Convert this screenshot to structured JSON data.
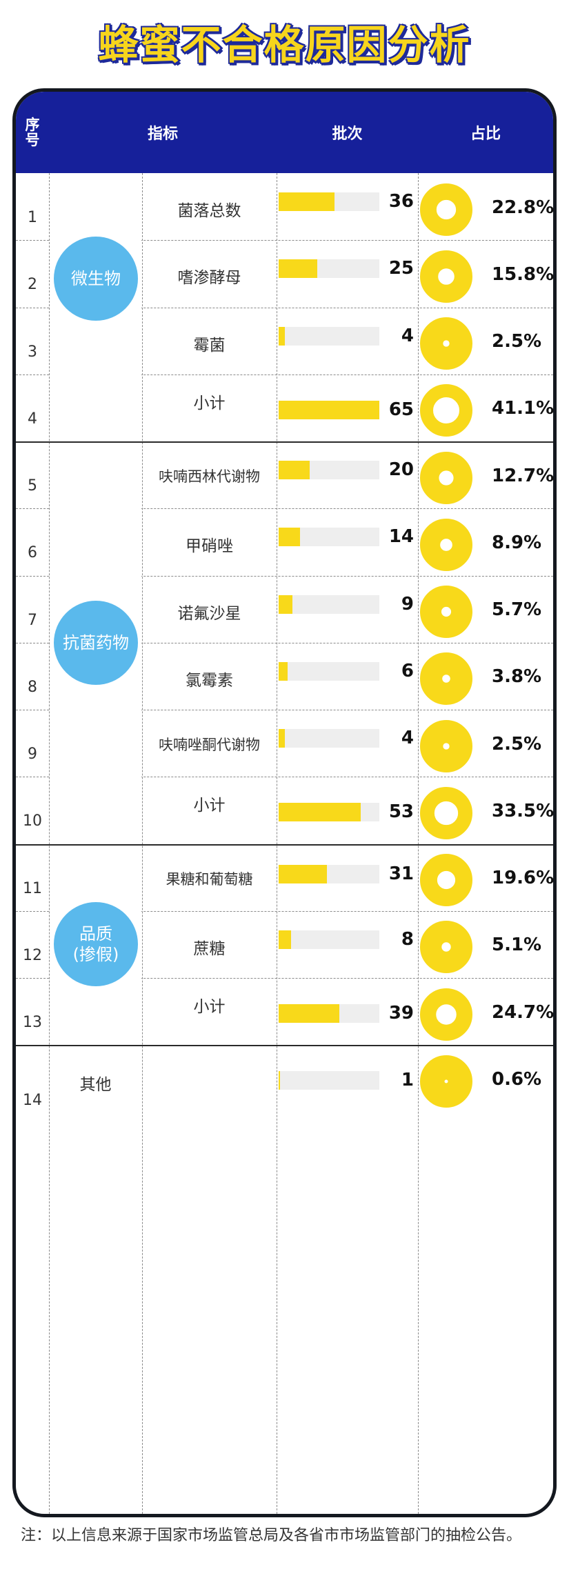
{
  "title": "蜂蜜不合格原因分析",
  "header": {
    "seq": [
      "序",
      "号"
    ],
    "indicator": "指标",
    "batches": "批次",
    "ratio": "占比"
  },
  "colors": {
    "header_bg": "#16209a",
    "accent_yellow": "#f8d91a",
    "category_blue": "#5ab9ec",
    "title_yellow": "#f7d51c"
  },
  "categories": [
    {
      "label": [
        "微生物"
      ],
      "rows": [
        0,
        3
      ]
    },
    {
      "label": [
        "抗菌药物"
      ],
      "rows": [
        4,
        9
      ]
    },
    {
      "label": [
        "品质",
        "(掺假)"
      ],
      "rows": [
        10,
        12
      ]
    }
  ],
  "footnote": "注：以上信息来源于国家市场监管总局及各省市市场监管部门的抽检公告。",
  "chart_data": {
    "type": "table",
    "title": "蜂蜜不合格原因分析",
    "columns": [
      "序号",
      "指标",
      "批次",
      "占比"
    ],
    "rows": [
      {
        "seq": "1",
        "category": "微生物",
        "indicator": "菌落总数",
        "batches": 36,
        "ratio": "22.8%"
      },
      {
        "seq": "2",
        "category": "微生物",
        "indicator": "嗜渗酵母",
        "batches": 25,
        "ratio": "15.8%"
      },
      {
        "seq": "3",
        "category": "微生物",
        "indicator": "霉菌",
        "batches": 4,
        "ratio": "2.5%"
      },
      {
        "seq": "4",
        "category": "微生物",
        "indicator": "小计",
        "batches": 65,
        "ratio": "41.1%"
      },
      {
        "seq": "5",
        "category": "抗菌药物",
        "indicator": "呋喃西林代谢物",
        "batches": 20,
        "ratio": "12.7%"
      },
      {
        "seq": "6",
        "category": "抗菌药物",
        "indicator": "甲硝唑",
        "batches": 14,
        "ratio": "8.9%"
      },
      {
        "seq": "7",
        "category": "抗菌药物",
        "indicator": "诺氟沙星",
        "batches": 9,
        "ratio": "5.7%"
      },
      {
        "seq": "8",
        "category": "抗菌药物",
        "indicator": "氯霉素",
        "batches": 6,
        "ratio": "3.8%"
      },
      {
        "seq": "9",
        "category": "抗菌药物",
        "indicator": "呋喃唑酮代谢物",
        "batches": 4,
        "ratio": "2.5%"
      },
      {
        "seq": "10",
        "category": "抗菌药物",
        "indicator": "小计",
        "batches": 53,
        "ratio": "33.5%"
      },
      {
        "seq": "11",
        "category": "品质(掺假)",
        "indicator": "果糖和葡萄糖",
        "batches": 31,
        "ratio": "19.6%"
      },
      {
        "seq": "12",
        "category": "品质(掺假)",
        "indicator": "蔗糖",
        "batches": 8,
        "ratio": "5.1%"
      },
      {
        "seq": "13",
        "category": "品质(掺假)",
        "indicator": "小计",
        "batches": 39,
        "ratio": "24.7%"
      },
      {
        "seq": "14",
        "category": "其他",
        "indicator": "其他",
        "batches": 1,
        "ratio": "0.6%"
      }
    ],
    "bar_max": 65
  }
}
